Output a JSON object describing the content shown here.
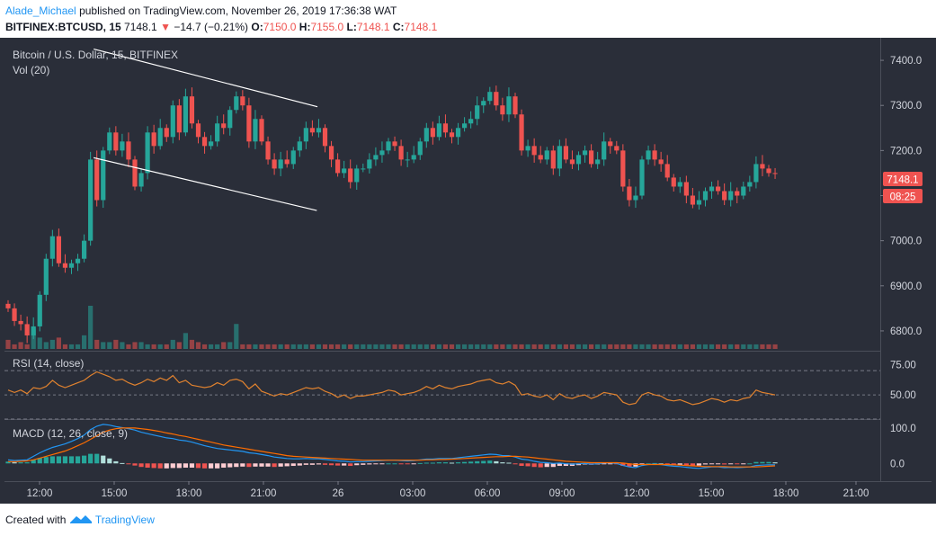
{
  "header": {
    "author": "Alade_Michael",
    "published_text": "published on TradingView.com, November 26, 2019 17:36:38 WAT",
    "symbol": "BITFINEX:BTCUSD, 15",
    "last": "7148.1",
    "change": "−14.7 (−0.21%)",
    "o_label": "O:",
    "o": "7150.0",
    "h_label": "H:",
    "h": "7155.0",
    "l_label": "L:",
    "l": "7148.1",
    "c_label": "C:",
    "c": "7148.1"
  },
  "colors": {
    "background": "#2a2e39",
    "up": "#26a69a",
    "down": "#ef5350",
    "rsi_line": "#e0822f",
    "macd_line": "#2196f3",
    "signal_line": "#ff6d00",
    "hist_pos_dark": "#26a69a",
    "hist_pos_light": "#b2dfdb",
    "hist_neg_dark": "#ef5350",
    "hist_neg_light": "#ffcdd2",
    "channel": "#ffffff",
    "text": "#d1d4dc"
  },
  "chart_data": [
    {
      "type": "candlestick",
      "title": "Bitcoin / U.S. Dollar, 15, BITFINEX",
      "subtitle": "Vol (20)",
      "y_ticks": [
        "7400.0",
        "7300.0",
        "7200.0",
        "7100.0",
        "7000.0",
        "6900.0",
        "6800.0"
      ],
      "ylim": [
        6760,
        7450
      ],
      "x_ticks": [
        "12:00",
        "15:00",
        "18:00",
        "21:00",
        "26",
        "03:00",
        "06:00",
        "09:00",
        "12:00",
        "15:00",
        "18:00",
        "21:00"
      ],
      "last_price_label": "7148.1",
      "countdown_label": "08:25",
      "channel_lines": [
        {
          "from": [
            13.5,
            7425
          ],
          "to": [
            44.8,
            7297
          ]
        },
        {
          "from": [
            13.5,
            7184
          ],
          "to": [
            44.7,
            7067
          ]
        }
      ],
      "closes": [
        6850,
        6822,
        6815,
        6790,
        6810,
        6880,
        6960,
        7010,
        6950,
        6940,
        6950,
        6960,
        7000,
        7180,
        7090,
        7200,
        7240,
        7200,
        7220,
        7180,
        7120,
        7150,
        7240,
        7210,
        7250,
        7230,
        7300,
        7240,
        7320,
        7260,
        7230,
        7210,
        7220,
        7260,
        7250,
        7290,
        7320,
        7300,
        7220,
        7270,
        7220,
        7180,
        7160,
        7180,
        7170,
        7200,
        7220,
        7250,
        7240,
        7250,
        7210,
        7180,
        7150,
        7160,
        7130,
        7160,
        7160,
        7180,
        7190,
        7200,
        7220,
        7210,
        7180,
        7180,
        7190,
        7220,
        7250,
        7230,
        7260,
        7240,
        7230,
        7250,
        7260,
        7270,
        7300,
        7310,
        7330,
        7300,
        7280,
        7320,
        7280,
        7200,
        7210,
        7190,
        7180,
        7200,
        7160,
        7210,
        7180,
        7170,
        7190,
        7200,
        7170,
        7180,
        7220,
        7210,
        7200,
        7120,
        7090,
        7100,
        7180,
        7200,
        7180,
        7170,
        7140,
        7120,
        7130,
        7100,
        7080,
        7090,
        7110,
        7120,
        7110,
        7090,
        7110,
        7100,
        7120,
        7130,
        7170,
        7160,
        7150,
        7148
      ],
      "volumes": [
        0.4,
        0.2,
        0.3,
        0.2,
        0.9,
        0.5,
        0.3,
        0.4,
        0.5,
        0.2,
        0.2,
        0.2,
        0.6,
        1.9,
        0.4,
        0.3,
        0.3,
        0.4,
        0.3,
        0.2,
        0.3,
        0.3,
        0.2,
        0.2,
        0.2,
        0.2,
        0.4,
        0.3,
        0.7,
        0.4,
        0.3,
        0.2,
        0.2,
        0.2,
        0.3,
        0.3,
        1.1,
        0.2,
        0.2,
        0.2,
        0.2,
        0.2,
        0.2,
        0.2,
        0.2,
        0.2,
        0.2,
        0.2,
        0.2,
        0.2,
        0.2,
        0.2,
        0.2,
        0.2,
        0.2,
        0.2,
        0.2,
        0.2,
        0.2,
        0.2,
        0.2,
        0.2,
        0.2,
        0.2,
        0.2,
        0.2,
        0.2,
        0.2,
        0.2,
        0.2,
        0.2,
        0.2,
        0.2,
        0.2,
        0.2,
        0.2,
        0.2,
        0.2,
        0.2,
        0.2,
        0.2,
        0.2,
        0.2,
        0.2,
        0.2,
        0.2,
        0.2,
        0.2,
        0.2,
        0.2,
        0.2,
        0.2,
        0.2,
        0.2,
        0.2,
        0.2,
        0.2,
        0.2,
        0.2,
        0.2,
        0.2,
        0.2,
        0.2,
        0.2,
        0.2,
        0.2,
        0.2,
        0.2,
        0.2,
        0.2,
        0.2,
        0.2,
        0.2,
        0.2,
        0.2,
        0.2,
        0.2,
        0.2,
        0.2,
        0.2,
        0.2,
        0.2
      ]
    },
    {
      "type": "line",
      "title": "RSI (14, close)",
      "y_ticks": [
        "75.00",
        "50.00"
      ],
      "ylim": [
        30,
        85
      ],
      "bands": [
        70,
        50,
        30
      ],
      "values": [
        54,
        52,
        54,
        51,
        56,
        55,
        57,
        62,
        58,
        56,
        58,
        60,
        62,
        66,
        69,
        67,
        65,
        62,
        63,
        60,
        58,
        60,
        63,
        61,
        64,
        62,
        66,
        60,
        62,
        58,
        57,
        56,
        57,
        60,
        58,
        62,
        63,
        61,
        55,
        59,
        53,
        51,
        49,
        51,
        50,
        52,
        54,
        56,
        55,
        56,
        53,
        51,
        48,
        50,
        47,
        49,
        49,
        50,
        51,
        52,
        54,
        53,
        50,
        51,
        52,
        54,
        57,
        55,
        58,
        56,
        55,
        57,
        58,
        59,
        61,
        62,
        63,
        60,
        59,
        61,
        58,
        50,
        51,
        49,
        48,
        50,
        46,
        51,
        48,
        47,
        49,
        50,
        47,
        49,
        52,
        51,
        50,
        44,
        42,
        43,
        50,
        52,
        50,
        49,
        46,
        45,
        46,
        44,
        42,
        43,
        45,
        47,
        46,
        44,
        46,
        45,
        47,
        48,
        54,
        52,
        51,
        50
      ]
    },
    {
      "type": "bar",
      "title": "MACD (12, 26, close, 9)",
      "y_ticks": [
        "100.0",
        "0.0"
      ],
      "ylim": [
        -45,
        120
      ],
      "macd": [
        10,
        8,
        9,
        10,
        20,
        30,
        38,
        45,
        50,
        55,
        62,
        70,
        80,
        95,
        105,
        110,
        108,
        104,
        101,
        98,
        94,
        88,
        84,
        80,
        76,
        72,
        70,
        66,
        64,
        60,
        55,
        50,
        46,
        42,
        40,
        38,
        36,
        34,
        30,
        28,
        25,
        22,
        18,
        16,
        14,
        13,
        13,
        14,
        13,
        13,
        11,
        9,
        7,
        6,
        4,
        5,
        5,
        6,
        7,
        8,
        9,
        9,
        8,
        7,
        8,
        10,
        12,
        12,
        14,
        14,
        14,
        16,
        18,
        20,
        22,
        24,
        26,
        25,
        22,
        22,
        18,
        12,
        10,
        6,
        3,
        2,
        0,
        1,
        -1,
        -2,
        -1,
        0,
        -2,
        -1,
        1,
        1,
        0,
        -6,
        -10,
        -12,
        -6,
        -3,
        -2,
        -3,
        -6,
        -8,
        -9,
        -11,
        -13,
        -14,
        -12,
        -10,
        -10,
        -12,
        -11,
        -12,
        -11,
        -10,
        -6,
        -5,
        -4,
        -4
      ],
      "signal": [
        5,
        5,
        6,
        7,
        10,
        15,
        20,
        25,
        30,
        35,
        42,
        50,
        58,
        68,
        78,
        88,
        94,
        98,
        100,
        100,
        100,
        98,
        96,
        93,
        90,
        86,
        83,
        79,
        76,
        72,
        68,
        64,
        60,
        56,
        52,
        49,
        46,
        43,
        40,
        37,
        34,
        31,
        28,
        25,
        22,
        20,
        19,
        18,
        17,
        16,
        15,
        14,
        13,
        12,
        11,
        10,
        9,
        9,
        9,
        9,
        9,
        9,
        9,
        9,
        9,
        9,
        10,
        10,
        11,
        11,
        12,
        13,
        14,
        15,
        16,
        17,
        18,
        19,
        19,
        20,
        20,
        19,
        18,
        16,
        14,
        12,
        10,
        8,
        6,
        5,
        4,
        3,
        2,
        2,
        2,
        2,
        2,
        1,
        -1,
        -3,
        -3,
        -3,
        -3,
        -3,
        -3,
        -4,
        -5,
        -6,
        -7,
        -8,
        -9,
        -9,
        -9,
        -9,
        -10,
        -10,
        -10,
        -10,
        -10,
        -9,
        -8,
        -7
      ],
      "x_ticks": [
        "12:00",
        "15:00",
        "18:00",
        "21:00",
        "26",
        "03:00",
        "06:00",
        "09:00",
        "12:00",
        "15:00",
        "18:00",
        "21:00"
      ]
    }
  ],
  "footer": {
    "created_with": "Created with",
    "brand": "TradingView"
  }
}
